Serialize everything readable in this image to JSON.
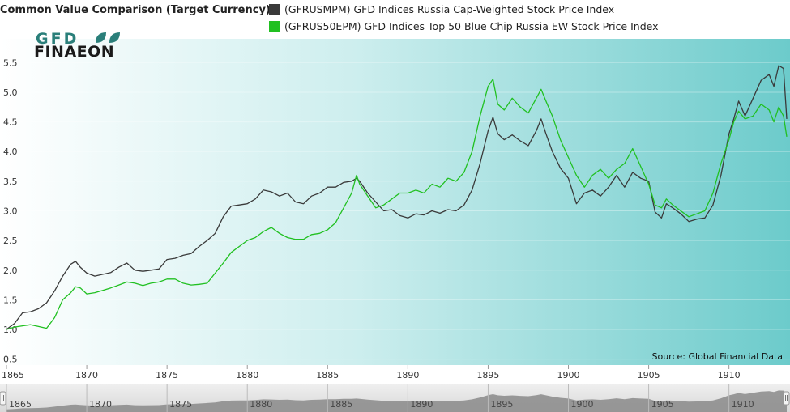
{
  "brand": {
    "logo_top": "GFD",
    "logo_bottom": "FINAEON",
    "logo_leaf_color": "#2a7f7a",
    "logo_text_color": "#1a1a1a"
  },
  "colors": {
    "series_dark": "#3a3a3a",
    "series_green": "#21c021",
    "plot_bg_left": "#ffffff",
    "plot_bg_right": "#6ccbcb",
    "navigator_fill": "#8a8a8a"
  },
  "chart_data": {
    "type": "line",
    "title": "Common Value Comparison (Target Currency)",
    "xlabel": "",
    "ylabel": "",
    "xlim": [
      1865,
      1913.6
    ],
    "ylim": [
      0.4,
      5.9
    ],
    "y_ticks": [
      "0.5",
      "1.0",
      "1.5",
      "2.0",
      "2.5",
      "3.0",
      "3.5",
      "4.0",
      "4.5",
      "5.0",
      "5.5"
    ],
    "x_ticks": [
      "1865",
      "1870",
      "1875",
      "1880",
      "1885",
      "1890",
      "1895",
      "1900",
      "1905",
      "1910"
    ],
    "navigator_ticks": [
      "1865",
      "1870",
      "1875",
      "1880",
      "1885",
      "1890",
      "1895",
      "1900",
      "1905",
      "1910"
    ],
    "source": "Source: Global Financial Data",
    "legend_position": "top",
    "series": [
      {
        "name": "(GFRUSMPM) GFD Indices Russia Cap-Weighted Stock Price Index",
        "color": "#3a3a3a",
        "points": [
          [
            1865.0,
            1.0
          ],
          [
            1865.5,
            1.1
          ],
          [
            1866.0,
            1.28
          ],
          [
            1866.5,
            1.3
          ],
          [
            1867.0,
            1.35
          ],
          [
            1867.5,
            1.45
          ],
          [
            1868.0,
            1.65
          ],
          [
            1868.5,
            1.9
          ],
          [
            1869.0,
            2.1
          ],
          [
            1869.3,
            2.15
          ],
          [
            1869.6,
            2.05
          ],
          [
            1870.0,
            1.95
          ],
          [
            1870.5,
            1.9
          ],
          [
            1871.0,
            1.93
          ],
          [
            1871.5,
            1.96
          ],
          [
            1872.0,
            2.05
          ],
          [
            1872.5,
            2.12
          ],
          [
            1873.0,
            2.0
          ],
          [
            1873.5,
            1.98
          ],
          [
            1874.0,
            2.0
          ],
          [
            1874.5,
            2.02
          ],
          [
            1875.0,
            2.18
          ],
          [
            1875.5,
            2.2
          ],
          [
            1876.0,
            2.25
          ],
          [
            1876.5,
            2.28
          ],
          [
            1877.0,
            2.4
          ],
          [
            1877.5,
            2.5
          ],
          [
            1878.0,
            2.62
          ],
          [
            1878.5,
            2.9
          ],
          [
            1879.0,
            3.08
          ],
          [
            1879.5,
            3.1
          ],
          [
            1880.0,
            3.12
          ],
          [
            1880.5,
            3.2
          ],
          [
            1881.0,
            3.35
          ],
          [
            1881.5,
            3.32
          ],
          [
            1882.0,
            3.25
          ],
          [
            1882.5,
            3.3
          ],
          [
            1883.0,
            3.15
          ],
          [
            1883.5,
            3.12
          ],
          [
            1884.0,
            3.25
          ],
          [
            1884.5,
            3.3
          ],
          [
            1885.0,
            3.4
          ],
          [
            1885.5,
            3.4
          ],
          [
            1886.0,
            3.48
          ],
          [
            1886.5,
            3.5
          ],
          [
            1886.8,
            3.55
          ],
          [
            1887.0,
            3.5
          ],
          [
            1887.5,
            3.3
          ],
          [
            1888.0,
            3.15
          ],
          [
            1888.5,
            3.0
          ],
          [
            1889.0,
            3.02
          ],
          [
            1889.5,
            2.92
          ],
          [
            1890.0,
            2.88
          ],
          [
            1890.5,
            2.95
          ],
          [
            1891.0,
            2.93
          ],
          [
            1891.5,
            3.0
          ],
          [
            1892.0,
            2.96
          ],
          [
            1892.5,
            3.02
          ],
          [
            1893.0,
            3.0
          ],
          [
            1893.5,
            3.1
          ],
          [
            1894.0,
            3.35
          ],
          [
            1894.5,
            3.8
          ],
          [
            1895.0,
            4.35
          ],
          [
            1895.3,
            4.58
          ],
          [
            1895.6,
            4.3
          ],
          [
            1896.0,
            4.2
          ],
          [
            1896.5,
            4.28
          ],
          [
            1897.0,
            4.18
          ],
          [
            1897.5,
            4.1
          ],
          [
            1898.0,
            4.35
          ],
          [
            1898.3,
            4.55
          ],
          [
            1898.6,
            4.3
          ],
          [
            1899.0,
            4.0
          ],
          [
            1899.5,
            3.72
          ],
          [
            1900.0,
            3.55
          ],
          [
            1900.5,
            3.12
          ],
          [
            1901.0,
            3.3
          ],
          [
            1901.5,
            3.35
          ],
          [
            1902.0,
            3.25
          ],
          [
            1902.5,
            3.4
          ],
          [
            1903.0,
            3.6
          ],
          [
            1903.5,
            3.4
          ],
          [
            1904.0,
            3.65
          ],
          [
            1904.5,
            3.55
          ],
          [
            1905.0,
            3.5
          ],
          [
            1905.4,
            2.98
          ],
          [
            1905.8,
            2.88
          ],
          [
            1906.1,
            3.12
          ],
          [
            1906.5,
            3.05
          ],
          [
            1907.0,
            2.95
          ],
          [
            1907.5,
            2.82
          ],
          [
            1908.0,
            2.86
          ],
          [
            1908.5,
            2.88
          ],
          [
            1909.0,
            3.1
          ],
          [
            1909.5,
            3.6
          ],
          [
            1910.0,
            4.3
          ],
          [
            1910.3,
            4.55
          ],
          [
            1910.6,
            4.85
          ],
          [
            1911.0,
            4.6
          ],
          [
            1911.5,
            4.9
          ],
          [
            1912.0,
            5.2
          ],
          [
            1912.5,
            5.3
          ],
          [
            1912.8,
            5.1
          ],
          [
            1913.1,
            5.45
          ],
          [
            1913.4,
            5.4
          ],
          [
            1913.6,
            4.55
          ]
        ]
      },
      {
        "name": "(GFRUS50EPM) GFD Indices Top 50 Blue Chip Russia EW Stock Price Index",
        "color": "#21c021",
        "points": [
          [
            1865.0,
            1.0
          ],
          [
            1865.5,
            1.04
          ],
          [
            1866.0,
            1.06
          ],
          [
            1866.5,
            1.08
          ],
          [
            1867.0,
            1.05
          ],
          [
            1867.5,
            1.02
          ],
          [
            1868.0,
            1.2
          ],
          [
            1868.5,
            1.5
          ],
          [
            1869.0,
            1.62
          ],
          [
            1869.3,
            1.72
          ],
          [
            1869.6,
            1.7
          ],
          [
            1870.0,
            1.6
          ],
          [
            1870.5,
            1.62
          ],
          [
            1871.0,
            1.66
          ],
          [
            1871.5,
            1.7
          ],
          [
            1872.0,
            1.75
          ],
          [
            1872.5,
            1.8
          ],
          [
            1873.0,
            1.78
          ],
          [
            1873.5,
            1.74
          ],
          [
            1874.0,
            1.78
          ],
          [
            1874.5,
            1.8
          ],
          [
            1875.0,
            1.85
          ],
          [
            1875.5,
            1.85
          ],
          [
            1876.0,
            1.78
          ],
          [
            1876.5,
            1.75
          ],
          [
            1877.0,
            1.76
          ],
          [
            1877.5,
            1.78
          ],
          [
            1878.0,
            1.95
          ],
          [
            1878.5,
            2.12
          ],
          [
            1879.0,
            2.3
          ],
          [
            1879.5,
            2.4
          ],
          [
            1880.0,
            2.5
          ],
          [
            1880.5,
            2.55
          ],
          [
            1881.0,
            2.65
          ],
          [
            1881.5,
            2.72
          ],
          [
            1882.0,
            2.62
          ],
          [
            1882.5,
            2.55
          ],
          [
            1883.0,
            2.52
          ],
          [
            1883.5,
            2.52
          ],
          [
            1884.0,
            2.6
          ],
          [
            1884.5,
            2.62
          ],
          [
            1885.0,
            2.68
          ],
          [
            1885.5,
            2.8
          ],
          [
            1886.0,
            3.05
          ],
          [
            1886.5,
            3.3
          ],
          [
            1886.8,
            3.6
          ],
          [
            1887.0,
            3.45
          ],
          [
            1887.5,
            3.25
          ],
          [
            1888.0,
            3.05
          ],
          [
            1888.5,
            3.1
          ],
          [
            1889.0,
            3.2
          ],
          [
            1889.5,
            3.3
          ],
          [
            1890.0,
            3.3
          ],
          [
            1890.5,
            3.35
          ],
          [
            1891.0,
            3.3
          ],
          [
            1891.5,
            3.45
          ],
          [
            1892.0,
            3.4
          ],
          [
            1892.5,
            3.55
          ],
          [
            1893.0,
            3.5
          ],
          [
            1893.5,
            3.65
          ],
          [
            1894.0,
            4.0
          ],
          [
            1894.5,
            4.6
          ],
          [
            1895.0,
            5.1
          ],
          [
            1895.3,
            5.22
          ],
          [
            1895.6,
            4.8
          ],
          [
            1896.0,
            4.7
          ],
          [
            1896.5,
            4.9
          ],
          [
            1897.0,
            4.75
          ],
          [
            1897.5,
            4.65
          ],
          [
            1898.0,
            4.9
          ],
          [
            1898.3,
            5.05
          ],
          [
            1898.6,
            4.85
          ],
          [
            1899.0,
            4.6
          ],
          [
            1899.5,
            4.2
          ],
          [
            1900.0,
            3.9
          ],
          [
            1900.5,
            3.6
          ],
          [
            1901.0,
            3.4
          ],
          [
            1901.5,
            3.6
          ],
          [
            1902.0,
            3.7
          ],
          [
            1902.5,
            3.55
          ],
          [
            1903.0,
            3.7
          ],
          [
            1903.5,
            3.8
          ],
          [
            1904.0,
            4.05
          ],
          [
            1904.5,
            3.75
          ],
          [
            1905.0,
            3.45
          ],
          [
            1905.4,
            3.1
          ],
          [
            1905.8,
            3.05
          ],
          [
            1906.1,
            3.2
          ],
          [
            1906.5,
            3.1
          ],
          [
            1907.0,
            3.0
          ],
          [
            1907.5,
            2.9
          ],
          [
            1908.0,
            2.95
          ],
          [
            1908.5,
            3.0
          ],
          [
            1909.0,
            3.3
          ],
          [
            1909.5,
            3.8
          ],
          [
            1910.0,
            4.2
          ],
          [
            1910.3,
            4.5
          ],
          [
            1910.6,
            4.68
          ],
          [
            1911.0,
            4.55
          ],
          [
            1911.5,
            4.6
          ],
          [
            1912.0,
            4.8
          ],
          [
            1912.5,
            4.7
          ],
          [
            1912.8,
            4.5
          ],
          [
            1913.1,
            4.75
          ],
          [
            1913.4,
            4.6
          ],
          [
            1913.6,
            4.25
          ]
        ]
      }
    ]
  }
}
